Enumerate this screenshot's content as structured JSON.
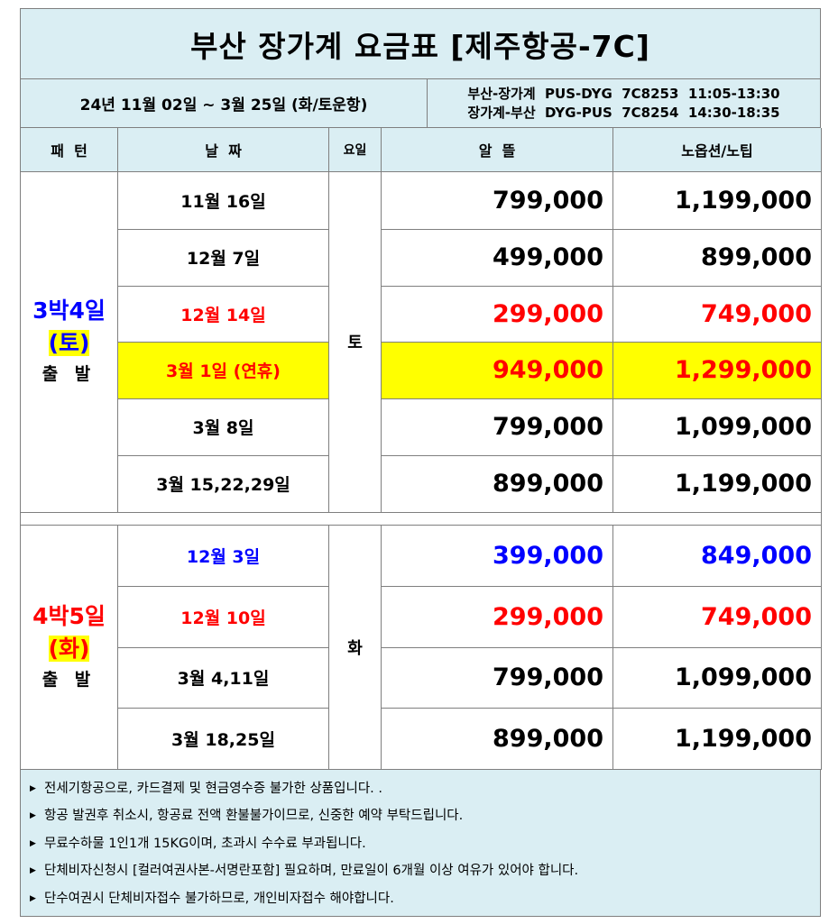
{
  "title": "부산 장가계 요금표 [제주항공-7C]",
  "period": "24년 11월 02일 ~ 3월 25일 (화/토운항)",
  "flights": [
    "부산-장가계  PUS-DYG  7C8253  11:05-13:30",
    "장가계-부산  DYG-PUS  7C8254  14:30-18:35"
  ],
  "headers": {
    "pattern": "패  턴",
    "date": "날  짜",
    "weekday": "요일",
    "alttul": "알  뜰",
    "noop": "노옵션/노팁"
  },
  "groups": [
    {
      "line1": "3박4일",
      "line2": "(토)",
      "line3": "출 발",
      "color": "#0000ff",
      "weekday": "토",
      "rows": [
        {
          "date": "11월  16일",
          "alttul": "799,000",
          "noop": "1,199,000",
          "color": "#000000",
          "highlight": false
        },
        {
          "date": "12월  7일",
          "alttul": "499,000",
          "noop": "899,000",
          "color": "#000000",
          "highlight": false
        },
        {
          "date": "12월  14일",
          "alttul": "299,000",
          "noop": "749,000",
          "color": "#ff0000",
          "highlight": false
        },
        {
          "date": "3월  1일  (연휴)",
          "alttul": "949,000",
          "noop": "1,299,000",
          "color": "#ff0000",
          "highlight": true
        },
        {
          "date": "3월  8일",
          "alttul": "799,000",
          "noop": "1,099,000",
          "color": "#000000",
          "highlight": false
        },
        {
          "date": "3월  15,22,29일",
          "alttul": "899,000",
          "noop": "1,199,000",
          "color": "#000000",
          "highlight": false
        }
      ]
    },
    {
      "line1": "4박5일",
      "line2": "(화)",
      "line3": "출 발",
      "color": "#ff0000",
      "weekday": "화",
      "rows": [
        {
          "date": "12월  3일",
          "alttul": "399,000",
          "noop": "849,000",
          "color": "#0000ff",
          "highlight": false
        },
        {
          "date": "12월  10일",
          "alttul": "299,000",
          "noop": "749,000",
          "color": "#ff0000",
          "highlight": false
        },
        {
          "date": "3월  4,11일",
          "alttul": "799,000",
          "noop": "1,099,000",
          "color": "#000000",
          "highlight": false
        },
        {
          "date": "3월  18,25일",
          "alttul": "899,000",
          "noop": "1,199,000",
          "color": "#000000",
          "highlight": false
        }
      ]
    }
  ],
  "notes": [
    "전세기항공으로, 카드결제 및 현금영수증 불가한 상품입니다. .",
    "항공 발권후 취소시, 항공료 전액 환불불가이므로, 신중한 예약 부탁드립니다.",
    "무료수하물 1인1개 15KG이며, 초과시 수수료 부과됩니다.",
    "단체비자신청시 [컬러여권사본-서명란포함] 필요하며, 만료일이 6개월 이상 여유가 있어야 합니다.",
    "단수여권시 단체비자접수 불가하므로, 개인비자접수 해야합니다."
  ],
  "colors": {
    "header_bg": "#daeef3",
    "highlight": "#ffff00",
    "blue": "#0000ff",
    "red": "#ff0000"
  }
}
